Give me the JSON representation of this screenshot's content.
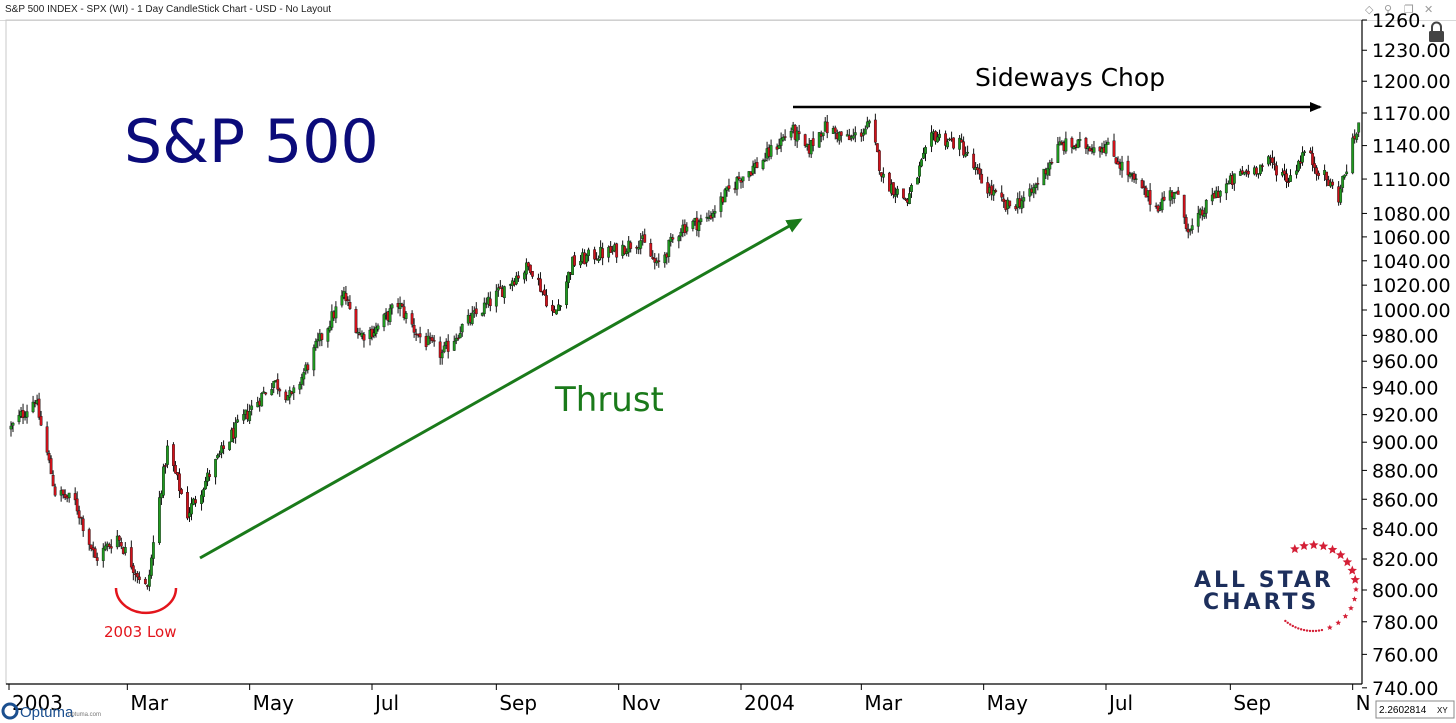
{
  "window": {
    "title": "S&P 500 INDEX - SPX (WI) - 1 Day CandleStick Chart - USD - No Layout",
    "diamond_icon": "diamond-icon",
    "pin_icon": "pin-icon",
    "restore_icon": "restore-icon",
    "close_icon": "close-icon",
    "lock_icon": "lock-icon"
  },
  "chart_data": {
    "type": "candlestick",
    "title": "S&P 500",
    "y_ticks": [
      "1260.",
      "1230.00",
      "1200.00",
      "1170.00",
      "1140.00",
      "1110.00",
      "1080.00",
      "1060.00",
      "1040.00",
      "1020.00",
      "1000.00",
      "980.00",
      "960.00",
      "940.00",
      "920.00",
      "900.00",
      "880.00",
      "860.00",
      "840.00",
      "820.00",
      "800.00",
      "780.00",
      "760.00",
      "740.00"
    ],
    "y_scale": "log",
    "x_labels": [
      "2003",
      "Mar",
      "May",
      "Jul",
      "Sep",
      "Nov",
      "2004",
      "Mar",
      "May",
      "Jul",
      "Sep",
      "N"
    ],
    "series": [
      {
        "points": [
          [
            "2003-01-02",
            910
          ],
          [
            "2003-01-14",
            932
          ],
          [
            "2003-01-24",
            865
          ],
          [
            "2003-02-03",
            858
          ],
          [
            "2003-02-13",
            820
          ],
          [
            "2003-02-24",
            835
          ],
          [
            "2003-03-04",
            815
          ],
          [
            "2003-03-11",
            800
          ],
          [
            "2003-03-17",
            860
          ],
          [
            "2003-03-21",
            895
          ],
          [
            "2003-03-31",
            850
          ],
          [
            "2003-04-10",
            875
          ],
          [
            "2003-04-22",
            905
          ],
          [
            "2003-05-02",
            925
          ],
          [
            "2003-05-13",
            945
          ],
          [
            "2003-05-22",
            932
          ],
          [
            "2003-06-02",
            967
          ],
          [
            "2003-06-17",
            1012
          ],
          [
            "2003-06-25",
            980
          ],
          [
            "2003-07-03",
            985
          ],
          [
            "2003-07-14",
            1005
          ],
          [
            "2003-07-24",
            980
          ],
          [
            "2003-08-05",
            965
          ],
          [
            "2003-08-14",
            985
          ],
          [
            "2003-08-28",
            1005
          ],
          [
            "2003-09-09",
            1025
          ],
          [
            "2003-09-18",
            1036
          ],
          [
            "2003-09-30",
            995
          ],
          [
            "2003-10-09",
            1038
          ],
          [
            "2003-10-20",
            1045
          ],
          [
            "2003-10-30",
            1048
          ],
          [
            "2003-11-12",
            1058
          ],
          [
            "2003-11-20",
            1035
          ],
          [
            "2003-12-02",
            1068
          ],
          [
            "2003-12-15",
            1075
          ],
          [
            "2003-12-31",
            1111
          ],
          [
            "2004-01-12",
            1127
          ],
          [
            "2004-01-26",
            1155
          ],
          [
            "2004-02-03",
            1135
          ],
          [
            "2004-02-11",
            1157
          ],
          [
            "2004-02-24",
            1145
          ],
          [
            "2004-03-05",
            1158
          ],
          [
            "2004-03-12",
            1110
          ],
          [
            "2004-03-24",
            1091
          ],
          [
            "2004-04-06",
            1150
          ],
          [
            "2004-04-20",
            1140
          ],
          [
            "2004-04-29",
            1110
          ],
          [
            "2004-05-12",
            1085
          ],
          [
            "2004-05-24",
            1095
          ],
          [
            "2004-06-08",
            1140
          ],
          [
            "2004-06-23",
            1140
          ],
          [
            "2004-07-01",
            1140
          ],
          [
            "2004-07-14",
            1110
          ],
          [
            "2004-07-26",
            1086
          ],
          [
            "2004-08-04",
            1100
          ],
          [
            "2004-08-12",
            1064
          ],
          [
            "2004-08-24",
            1096
          ],
          [
            "2004-09-07",
            1115
          ],
          [
            "2004-09-21",
            1125
          ],
          [
            "2004-09-30",
            1110
          ],
          [
            "2004-10-08",
            1135
          ],
          [
            "2004-10-25",
            1095
          ],
          [
            "2004-11-04",
            1160
          ]
        ]
      }
    ],
    "annotations": {
      "thrust": "Thrust",
      "sideways": "Sideways Chop",
      "low": "2003 Low"
    },
    "grid": false,
    "candle_up_color": "#1f9a1f",
    "candle_down_color": "#d0121b"
  },
  "branding": {
    "line1": "ALL STAR",
    "line2": "CHARTS",
    "color": "#1d2f5c",
    "star_color": "#d41f36",
    "optuma": "Optuma",
    "optuma_small": "optuma.com",
    "coord_box": "2.2602814",
    "coord_xy": "XY"
  },
  "colors": {
    "title": "#0b0b7a",
    "thrust": "#1a7a1a",
    "low": "#e3151c",
    "sideways": "#000000"
  }
}
